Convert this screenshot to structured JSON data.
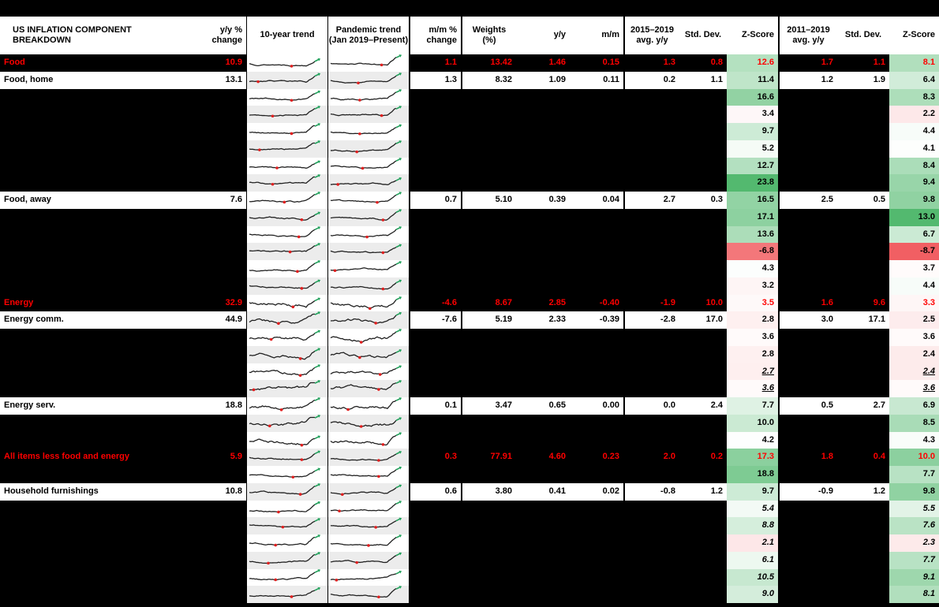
{
  "title": "US INFLATION COMPONENT BREAKDOWN",
  "header": {
    "component": "US INFLATION COMPONENT BREAKDOWN",
    "yy_change": "y/y %\nchange",
    "trend_10yr": "10-year trend",
    "trend_pandemic": "Pandemic trend\n(Jan 2019–Present)",
    "mm_change": "m/m %\nchange",
    "weights": "Weights\n(%)",
    "yy": "y/y",
    "mm": "m/m",
    "avg_2015_2019": "2015–2019\navg. y/y",
    "std_dev_1": "Std. Dev.",
    "z_score_1": "Z-Score",
    "avg_2011_2019": "2011–2019\navg. y/y",
    "std_dev_2": "Std. Dev.",
    "z_score_2": "Z-Score"
  },
  "colors": {
    "background": "#000000",
    "row_bg": "#ffffff",
    "accent_red": "#ff0000",
    "spark_line": "#1f1f1f",
    "spark_low_marker": "#e01f1f",
    "spark_end_marker": "#1fa05a",
    "spark_band_alt": "#ececec",
    "heat_green_max": "#53b96f",
    "heat_red_max": "#f15f63"
  },
  "heatmap": {
    "mid": 4,
    "min": -8.7,
    "max_col1": 23.8,
    "max_col2": 13.0
  },
  "chart_data": {
    "type": "table",
    "title": "US INFLATION COMPONENT BREAKDOWN",
    "columns": [
      "Component",
      "y/y % change",
      "10-year trend",
      "Pandemic trend (Jan 2019–Present)",
      "m/m % change",
      "Weights (%)",
      "y/y",
      "m/m",
      "2015–2019 avg. y/y",
      "Std. Dev.",
      "Z-Score",
      "2011–2019 avg. y/y",
      "Std. Dev.",
      "Z-Score"
    ],
    "rows": [
      {
        "name": "Food",
        "emphasis": "red",
        "z_style": "normal",
        "yy_change": "10.9",
        "mm_change": "1.1",
        "weights": "13.42",
        "yy": "1.46",
        "mm": "0.15",
        "avg_2015_2019": "1.3",
        "std_dev_1": "0.8",
        "z_score_1": "12.6",
        "avg_2011_2019": "1.7",
        "std_dev_2": "1.1",
        "z_score_2": "8.1"
      },
      {
        "name": "Food, home",
        "emphasis": "normal",
        "z_style": "normal",
        "yy_change": "13.1",
        "mm_change": "1.3",
        "weights": "8.32",
        "yy": "1.09",
        "mm": "0.11",
        "avg_2015_2019": "0.2",
        "std_dev_1": "1.1",
        "z_score_1": "11.4",
        "avg_2011_2019": "1.2",
        "std_dev_2": "1.9",
        "z_score_2": "6.4"
      },
      {
        "name": "",
        "emphasis": "none",
        "z_style": "normal",
        "yy_change": "",
        "mm_change": "",
        "weights": "",
        "yy": "",
        "mm": "",
        "avg_2015_2019": "",
        "std_dev_1": "",
        "z_score_1": "16.6",
        "avg_2011_2019": "",
        "std_dev_2": "",
        "z_score_2": "8.3"
      },
      {
        "name": "",
        "emphasis": "none",
        "z_style": "normal",
        "yy_change": "",
        "mm_change": "",
        "weights": "",
        "yy": "",
        "mm": "",
        "avg_2015_2019": "",
        "std_dev_1": "",
        "z_score_1": "3.4",
        "avg_2011_2019": "",
        "std_dev_2": "",
        "z_score_2": "2.2"
      },
      {
        "name": "",
        "emphasis": "none",
        "z_style": "normal",
        "yy_change": "",
        "mm_change": "",
        "weights": "",
        "yy": "",
        "mm": "",
        "avg_2015_2019": "",
        "std_dev_1": "",
        "z_score_1": "9.7",
        "avg_2011_2019": "",
        "std_dev_2": "",
        "z_score_2": "4.4"
      },
      {
        "name": "",
        "emphasis": "none",
        "z_style": "normal",
        "yy_change": "",
        "mm_change": "",
        "weights": "",
        "yy": "",
        "mm": "",
        "avg_2015_2019": "",
        "std_dev_1": "",
        "z_score_1": "5.2",
        "avg_2011_2019": "",
        "std_dev_2": "",
        "z_score_2": "4.1"
      },
      {
        "name": "",
        "emphasis": "none",
        "z_style": "normal",
        "yy_change": "",
        "mm_change": "",
        "weights": "",
        "yy": "",
        "mm": "",
        "avg_2015_2019": "",
        "std_dev_1": "",
        "z_score_1": "12.7",
        "avg_2011_2019": "",
        "std_dev_2": "",
        "z_score_2": "8.4"
      },
      {
        "name": "",
        "emphasis": "none",
        "z_style": "normal",
        "yy_change": "",
        "mm_change": "",
        "weights": "",
        "yy": "",
        "mm": "",
        "avg_2015_2019": "",
        "std_dev_1": "",
        "z_score_1": "23.8",
        "avg_2011_2019": "",
        "std_dev_2": "",
        "z_score_2": "9.4"
      },
      {
        "name": "Food, away",
        "emphasis": "normal",
        "z_style": "normal",
        "yy_change": "7.6",
        "mm_change": "0.7",
        "weights": "5.10",
        "yy": "0.39",
        "mm": "0.04",
        "avg_2015_2019": "2.7",
        "std_dev_1": "0.3",
        "z_score_1": "16.5",
        "avg_2011_2019": "2.5",
        "std_dev_2": "0.5",
        "z_score_2": "9.8"
      },
      {
        "name": "",
        "emphasis": "none",
        "z_style": "normal",
        "yy_change": "",
        "mm_change": "",
        "weights": "",
        "yy": "",
        "mm": "",
        "avg_2015_2019": "",
        "std_dev_1": "",
        "z_score_1": "17.1",
        "avg_2011_2019": "",
        "std_dev_2": "",
        "z_score_2": "13.0"
      },
      {
        "name": "",
        "emphasis": "none",
        "z_style": "normal",
        "yy_change": "",
        "mm_change": "",
        "weights": "",
        "yy": "",
        "mm": "",
        "avg_2015_2019": "",
        "std_dev_1": "",
        "z_score_1": "13.6",
        "avg_2011_2019": "",
        "std_dev_2": "",
        "z_score_2": "6.7"
      },
      {
        "name": "",
        "emphasis": "none",
        "z_style": "normal",
        "yy_change": "",
        "mm_change": "",
        "weights": "",
        "yy": "",
        "mm": "",
        "avg_2015_2019": "",
        "std_dev_1": "",
        "z_score_1": "-6.8",
        "avg_2011_2019": "",
        "std_dev_2": "",
        "z_score_2": "-8.7"
      },
      {
        "name": "",
        "emphasis": "none",
        "z_style": "normal",
        "yy_change": "",
        "mm_change": "",
        "weights": "",
        "yy": "",
        "mm": "",
        "avg_2015_2019": "",
        "std_dev_1": "",
        "z_score_1": "4.3",
        "avg_2011_2019": "",
        "std_dev_2": "",
        "z_score_2": "3.7"
      },
      {
        "name": "",
        "emphasis": "none",
        "z_style": "normal",
        "yy_change": "",
        "mm_change": "",
        "weights": "",
        "yy": "",
        "mm": "",
        "avg_2015_2019": "",
        "std_dev_1": "",
        "z_score_1": "3.2",
        "avg_2011_2019": "",
        "std_dev_2": "",
        "z_score_2": "4.4"
      },
      {
        "name": "Energy",
        "emphasis": "red",
        "z_style": "normal",
        "yy_change": "32.9",
        "mm_change": "-4.6",
        "weights": "8.67",
        "yy": "2.85",
        "mm": "-0.40",
        "avg_2015_2019": "-1.9",
        "std_dev_1": "10.0",
        "z_score_1": "3.5",
        "avg_2011_2019": "1.6",
        "std_dev_2": "9.6",
        "z_score_2": "3.3"
      },
      {
        "name": "Energy comm.",
        "emphasis": "normal",
        "z_style": "normal",
        "yy_change": "44.9",
        "mm_change": "-7.6",
        "weights": "5.19",
        "yy": "2.33",
        "mm": "-0.39",
        "avg_2015_2019": "-2.8",
        "std_dev_1": "17.0",
        "z_score_1": "2.8",
        "avg_2011_2019": "3.0",
        "std_dev_2": "17.1",
        "z_score_2": "2.5"
      },
      {
        "name": "",
        "emphasis": "none",
        "z_style": "normal",
        "yy_change": "",
        "mm_change": "",
        "weights": "",
        "yy": "",
        "mm": "",
        "avg_2015_2019": "",
        "std_dev_1": "",
        "z_score_1": "3.6",
        "avg_2011_2019": "",
        "std_dev_2": "",
        "z_score_2": "3.6"
      },
      {
        "name": "",
        "emphasis": "none",
        "z_style": "normal",
        "yy_change": "",
        "mm_change": "",
        "weights": "",
        "yy": "",
        "mm": "",
        "avg_2015_2019": "",
        "std_dev_1": "",
        "z_score_1": "2.8",
        "avg_2011_2019": "",
        "std_dev_2": "",
        "z_score_2": "2.4"
      },
      {
        "name": "",
        "emphasis": "none",
        "z_style": "italic-underline",
        "yy_change": "",
        "mm_change": "",
        "weights": "",
        "yy": "",
        "mm": "",
        "avg_2015_2019": "",
        "std_dev_1": "",
        "z_score_1": "2.7",
        "avg_2011_2019": "",
        "std_dev_2": "",
        "z_score_2": "2.4"
      },
      {
        "name": "",
        "emphasis": "none",
        "z_style": "italic-underline",
        "yy_change": "",
        "mm_change": "",
        "weights": "",
        "yy": "",
        "mm": "",
        "avg_2015_2019": "",
        "std_dev_1": "",
        "z_score_1": "3.6",
        "avg_2011_2019": "",
        "std_dev_2": "",
        "z_score_2": "3.6"
      },
      {
        "name": "Energy serv.",
        "emphasis": "normal",
        "z_style": "normal",
        "yy_change": "18.8",
        "mm_change": "0.1",
        "weights": "3.47",
        "yy": "0.65",
        "mm": "0.00",
        "avg_2015_2019": "0.0",
        "std_dev_1": "2.4",
        "z_score_1": "7.7",
        "avg_2011_2019": "0.5",
        "std_dev_2": "2.7",
        "z_score_2": "6.9"
      },
      {
        "name": "",
        "emphasis": "none",
        "z_style": "normal",
        "yy_change": "",
        "mm_change": "",
        "weights": "",
        "yy": "",
        "mm": "",
        "avg_2015_2019": "",
        "std_dev_1": "",
        "z_score_1": "10.0",
        "avg_2011_2019": "",
        "std_dev_2": "",
        "z_score_2": "8.5"
      },
      {
        "name": "",
        "emphasis": "none",
        "z_style": "normal",
        "yy_change": "",
        "mm_change": "",
        "weights": "",
        "yy": "",
        "mm": "",
        "avg_2015_2019": "",
        "std_dev_1": "",
        "z_score_1": "4.2",
        "avg_2011_2019": "",
        "std_dev_2": "",
        "z_score_2": "4.3"
      },
      {
        "name": "All items less food and energy",
        "emphasis": "red",
        "z_style": "normal",
        "yy_change": "5.9",
        "mm_change": "0.3",
        "weights": "77.91",
        "yy": "4.60",
        "mm": "0.23",
        "avg_2015_2019": "2.0",
        "std_dev_1": "0.2",
        "z_score_1": "17.3",
        "avg_2011_2019": "1.8",
        "std_dev_2": "0.4",
        "z_score_2": "10.0"
      },
      {
        "name": "",
        "emphasis": "none",
        "z_style": "normal",
        "yy_change": "",
        "mm_change": "",
        "weights": "",
        "yy": "",
        "mm": "",
        "avg_2015_2019": "",
        "std_dev_1": "",
        "z_score_1": "18.8",
        "avg_2011_2019": "",
        "std_dev_2": "",
        "z_score_2": "7.7"
      },
      {
        "name": "Household furnishings",
        "emphasis": "normal",
        "z_style": "normal",
        "yy_change": "10.8",
        "mm_change": "0.6",
        "weights": "3.80",
        "yy": "0.41",
        "mm": "0.02",
        "avg_2015_2019": "-0.8",
        "std_dev_1": "1.2",
        "z_score_1": "9.7",
        "avg_2011_2019": "-0.9",
        "std_dev_2": "1.2",
        "z_score_2": "9.8"
      },
      {
        "name": "",
        "emphasis": "none",
        "z_style": "italic",
        "yy_change": "",
        "mm_change": "",
        "weights": "",
        "yy": "",
        "mm": "",
        "avg_2015_2019": "",
        "std_dev_1": "",
        "z_score_1": "5.4",
        "avg_2011_2019": "",
        "std_dev_2": "",
        "z_score_2": "5.5"
      },
      {
        "name": "",
        "emphasis": "none",
        "z_style": "italic",
        "yy_change": "",
        "mm_change": "",
        "weights": "",
        "yy": "",
        "mm": "",
        "avg_2015_2019": "",
        "std_dev_1": "",
        "z_score_1": "8.8",
        "avg_2011_2019": "",
        "std_dev_2": "",
        "z_score_2": "7.6"
      },
      {
        "name": "",
        "emphasis": "none",
        "z_style": "italic",
        "yy_change": "",
        "mm_change": "",
        "weights": "",
        "yy": "",
        "mm": "",
        "avg_2015_2019": "",
        "std_dev_1": "",
        "z_score_1": "2.1",
        "avg_2011_2019": "",
        "std_dev_2": "",
        "z_score_2": "2.3"
      },
      {
        "name": "",
        "emphasis": "none",
        "z_style": "italic",
        "yy_change": "",
        "mm_change": "",
        "weights": "",
        "yy": "",
        "mm": "",
        "avg_2015_2019": "",
        "std_dev_1": "",
        "z_score_1": "6.1",
        "avg_2011_2019": "",
        "std_dev_2": "",
        "z_score_2": "7.7"
      },
      {
        "name": "",
        "emphasis": "none",
        "z_style": "italic",
        "yy_change": "",
        "mm_change": "",
        "weights": "",
        "yy": "",
        "mm": "",
        "avg_2015_2019": "",
        "std_dev_1": "",
        "z_score_1": "10.5",
        "avg_2011_2019": "",
        "std_dev_2": "",
        "z_score_2": "9.1"
      },
      {
        "name": "",
        "emphasis": "none",
        "z_style": "italic",
        "yy_change": "",
        "mm_change": "",
        "weights": "",
        "yy": "",
        "mm": "",
        "avg_2015_2019": "",
        "std_dev_1": "",
        "z_score_1": "9.0",
        "avg_2011_2019": "",
        "std_dev_2": "",
        "z_score_2": "8.1"
      }
    ]
  }
}
